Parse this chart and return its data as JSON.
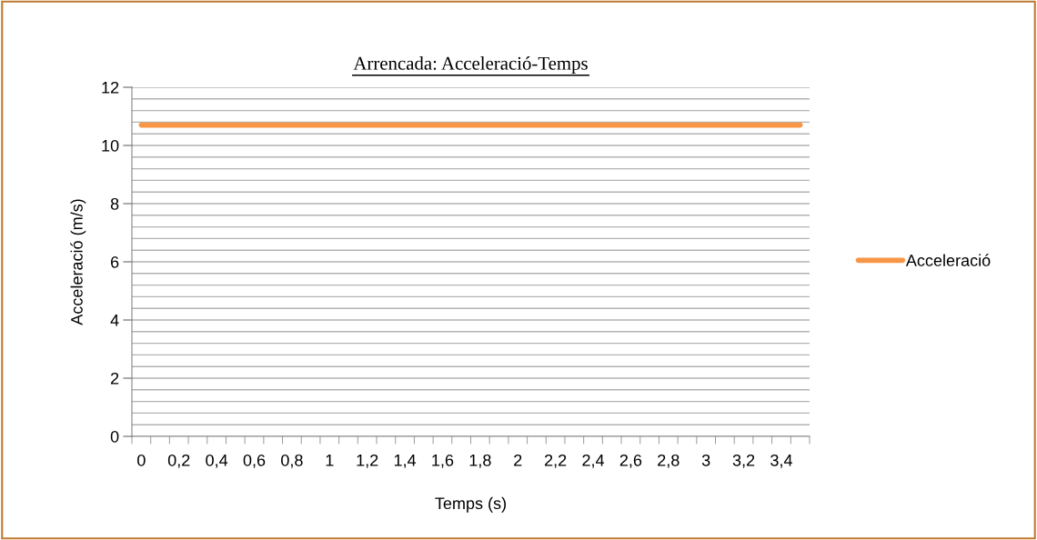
{
  "chart_data": {
    "type": "line",
    "title": "Arrencada: Acceleració-Temps",
    "xlabel": "Temps (s)",
    "ylabel": "Acceleració (m/s)",
    "categories": [
      "0",
      null,
      "0,2",
      null,
      "0,4",
      null,
      "0,6",
      null,
      "0,8",
      null,
      "1",
      null,
      "1,2",
      null,
      "1,4",
      null,
      "1,6",
      null,
      "1,8",
      null,
      "2",
      null,
      "2,2",
      null,
      "2,4",
      null,
      "2,6",
      null,
      "2,8",
      null,
      "3",
      null,
      "3,2",
      null,
      "3,4",
      null
    ],
    "series": [
      {
        "name": "Acceleració",
        "color": "#f79646",
        "values": [
          10.7,
          10.7,
          10.7,
          10.7,
          10.7,
          10.7,
          10.7,
          10.7,
          10.7,
          10.7,
          10.7,
          10.7,
          10.7,
          10.7,
          10.7,
          10.7,
          10.7,
          10.7,
          10.7,
          10.7,
          10.7,
          10.7,
          10.7,
          10.7,
          10.7,
          10.7,
          10.7,
          10.7,
          10.7,
          10.7,
          10.7,
          10.7,
          10.7,
          10.7,
          10.7,
          10.7
        ]
      }
    ],
    "ylim": [
      0,
      12
    ],
    "yticks": [
      0,
      {
        "value": 0.4,
        "label": null
      },
      {
        "value": 0.8,
        "label": null
      },
      {
        "value": 1.2,
        "label": null
      },
      {
        "value": 1.6,
        "label": null
      },
      2,
      {
        "value": 2.4,
        "label": null
      },
      {
        "value": 2.8,
        "label": null
      },
      {
        "value": 3.2,
        "label": null
      },
      {
        "value": 3.6,
        "label": null
      },
      4,
      {
        "value": 4.4,
        "label": null
      },
      {
        "value": 4.8,
        "label": null
      },
      {
        "value": 5.2,
        "label": null
      },
      {
        "value": 5.6,
        "label": null
      },
      6,
      {
        "value": 6.4,
        "label": null
      },
      {
        "value": 6.8,
        "label": null
      },
      {
        "value": 7.2,
        "label": null
      },
      {
        "value": 7.6,
        "label": null
      },
      8,
      {
        "value": 8.4,
        "label": null
      },
      {
        "value": 8.8,
        "label": null
      },
      {
        "value": 9.2,
        "label": null
      },
      {
        "value": 9.6,
        "label": null
      },
      10,
      {
        "value": 10.4,
        "label": null
      },
      {
        "value": 10.8,
        "label": null
      },
      {
        "value": 11.2,
        "label": null
      },
      {
        "value": 11.6,
        "label": null
      },
      12
    ],
    "grid": "y",
    "legend": "right",
    "marker": "none",
    "line_style": "solid"
  }
}
